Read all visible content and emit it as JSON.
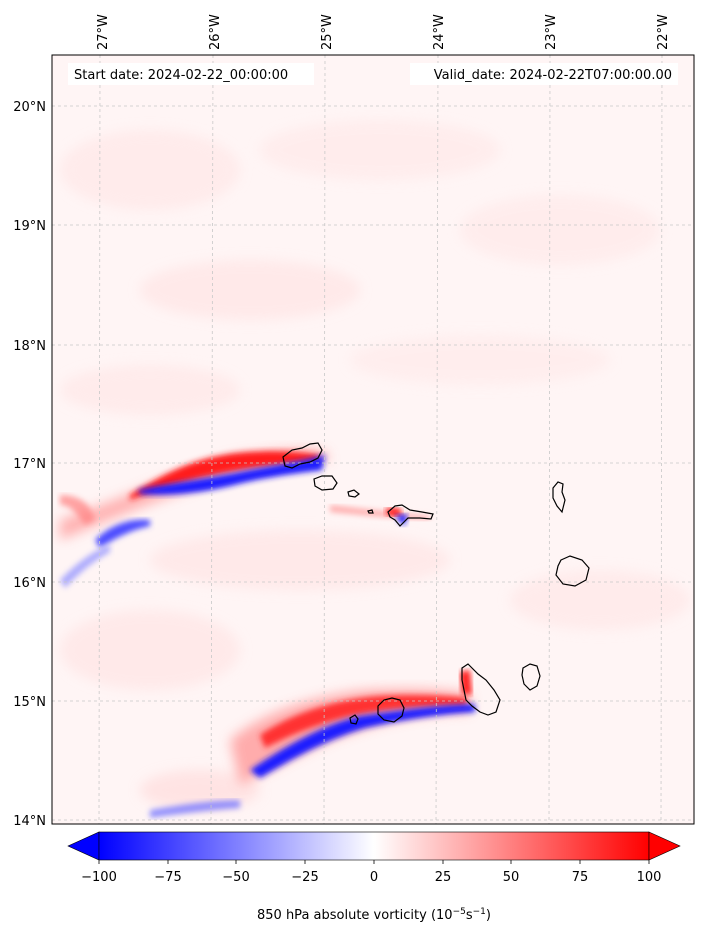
{
  "header": {
    "start_date": "Start date: 2024-02-22_00:00:00",
    "valid_date": "Valid_date: 2024-02-22T07:00:00.00"
  },
  "map": {
    "lon_labels": [
      "27°W",
      "26°W",
      "25°W",
      "24°W",
      "23°W",
      "22°W"
    ],
    "lat_labels": [
      "20°N",
      "19°N",
      "18°N",
      "17°N",
      "16°N",
      "15°N",
      "14°N"
    ],
    "extent": {
      "lon_min": -27.4,
      "lon_max": -21.8,
      "lat_min": 13.95,
      "lat_max": 20.42
    },
    "gridlines": true,
    "islands": [
      "Santo Antão",
      "São Vicente",
      "Santa Luzia",
      "São Nicolau",
      "Sal",
      "Boa Vista",
      "Maio",
      "Santiago",
      "Fogo",
      "Brava"
    ]
  },
  "colorbar": {
    "label_prefix": "850 hPa absolute vorticity (10",
    "label_exp1": "−5",
    "label_mid": "s",
    "label_exp2": "−1",
    "label_suffix": ")",
    "ticks": [
      "−100",
      "−75",
      "−50",
      "−25",
      "0",
      "25",
      "50",
      "75",
      "100"
    ],
    "range": [
      -100,
      100
    ],
    "colormap": "bwr",
    "extend": "both",
    "color_min": "#0000ff",
    "color_mid": "#ffffff",
    "color_max": "#ff0000"
  }
}
